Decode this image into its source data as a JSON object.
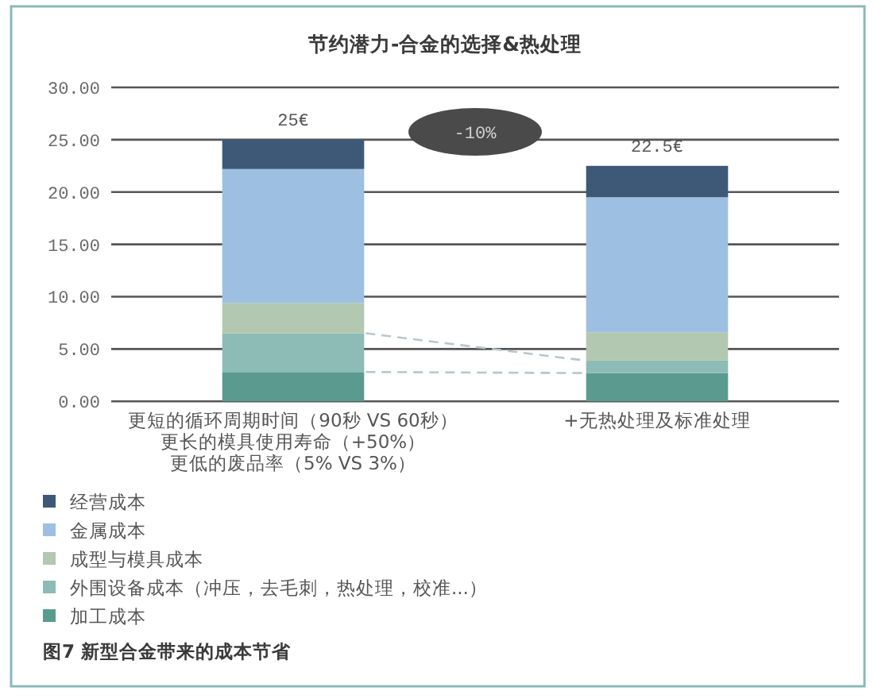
{
  "chart_data": {
    "type": "bar",
    "stacked": true,
    "title": "节约潜力-合金的选择&热处理",
    "categories": [
      "更短的循环周期时间（90秒 VS 60秒）更长的模具使用寿命（+50%）更低的废品率（5% VS 3%）",
      "+无热处理及标准处理"
    ],
    "series": [
      {
        "name": "加工成本",
        "color": "#5b9a8f",
        "values": [
          2.8,
          2.7
        ]
      },
      {
        "name": "外围设备成本（冲压，去毛刺，热处理，校准...）",
        "color": "#8cbcb5",
        "values": [
          3.7,
          1.2
        ]
      },
      {
        "name": "成型与模具成本",
        "color": "#b2c8b0",
        "values": [
          2.9,
          2.7
        ]
      },
      {
        "name": "金属成本",
        "color": "#9dbfe2",
        "values": [
          12.8,
          12.9
        ]
      },
      {
        "name": "经营成本",
        "color": "#3e5878",
        "values": [
          2.8,
          3.0
        ]
      }
    ],
    "totals": [
      "25€",
      "22.5€"
    ],
    "ylim": [
      0,
      30
    ],
    "yticks": [
      {
        "value": 0,
        "label": "0.00"
      },
      {
        "value": 5,
        "label": "5.00"
      },
      {
        "value": 10,
        "label": "10.00"
      },
      {
        "value": 15,
        "label": "15.00"
      },
      {
        "value": 20,
        "label": "20.00"
      },
      {
        "value": 25,
        "label": "25.00"
      },
      {
        "value": 30,
        "label": "30.00"
      }
    ],
    "grid": "y",
    "legend": "bottom",
    "annotations": [
      "-10%",
      "图7 新型合金带来的成本节省"
    ]
  }
}
